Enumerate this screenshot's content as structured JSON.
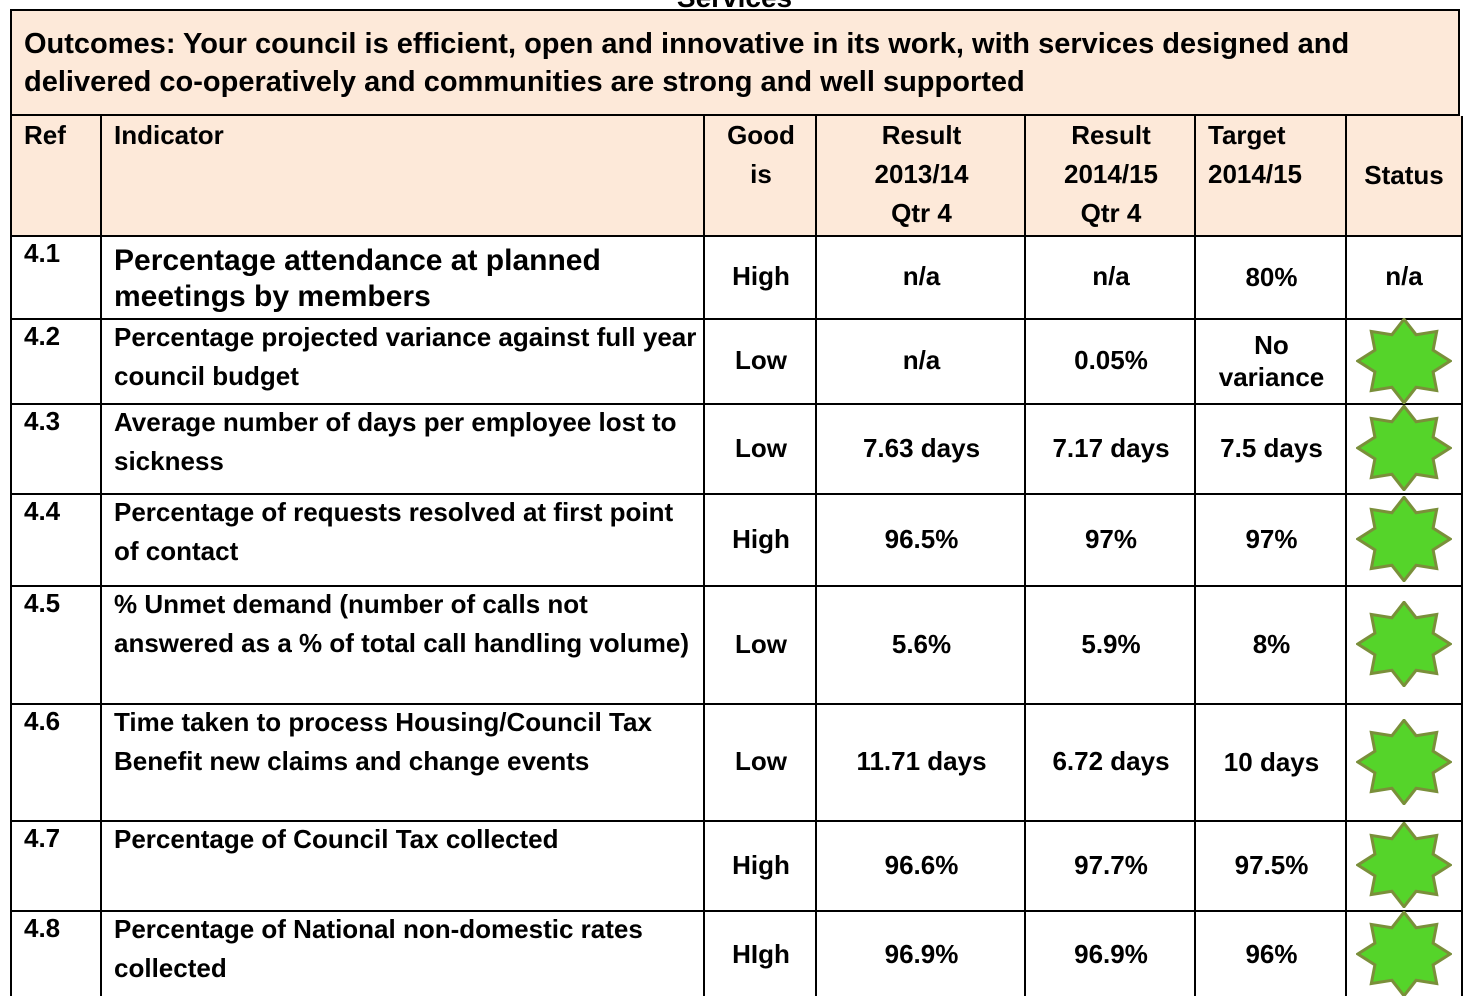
{
  "page_title": "Services",
  "outcome": "Outcomes: Your council is efficient, open and innovative in its work, with services designed and delivered co-operatively and communities are strong and well supported",
  "table": {
    "headers": [
      "Ref",
      "Indicator",
      "Good is",
      "Result 2013/14 Qtr 4",
      "Result 2014/15 Qtr 4",
      "Target 2014/15",
      "Status"
    ],
    "rows": [
      [
        "4.1",
        "Percentage attendance at planned meetings by members",
        "High",
        "n/a",
        "n/a",
        "80%",
        "n/a"
      ],
      [
        "4.2",
        "Percentage projected variance against full year council budget",
        "Low",
        "n/a",
        "0.05%",
        "No variance"
      ],
      [
        "4.3",
        "Average number of days per employee lost to sickness",
        "Low",
        "7.63 days",
        "7.17 days",
        "7.5 days"
      ],
      [
        "4.4",
        "Percentage of requests resolved at first point of contact",
        "High",
        "96.5%",
        "97%",
        "97%"
      ],
      [
        "4.5",
        "% Unmet demand (number of calls not answered as a % of total call handling volume)",
        "Low",
        "5.6%",
        "5.9%",
        "8%"
      ],
      [
        "4.6",
        "Time taken to process Housing/Council Tax Benefit new claims and change events",
        "Low",
        "11.71 days",
        "6.72 days",
        "10 days"
      ],
      [
        "4.7",
        "Percentage of Council Tax collected",
        "High",
        "96.6%",
        "97.7%",
        "97.5%"
      ],
      [
        "4.8",
        "Percentage of National non-domestic rates collected",
        "HIgh",
        "96.9%",
        "96.9%",
        "96%"
      ]
    ]
  }
}
